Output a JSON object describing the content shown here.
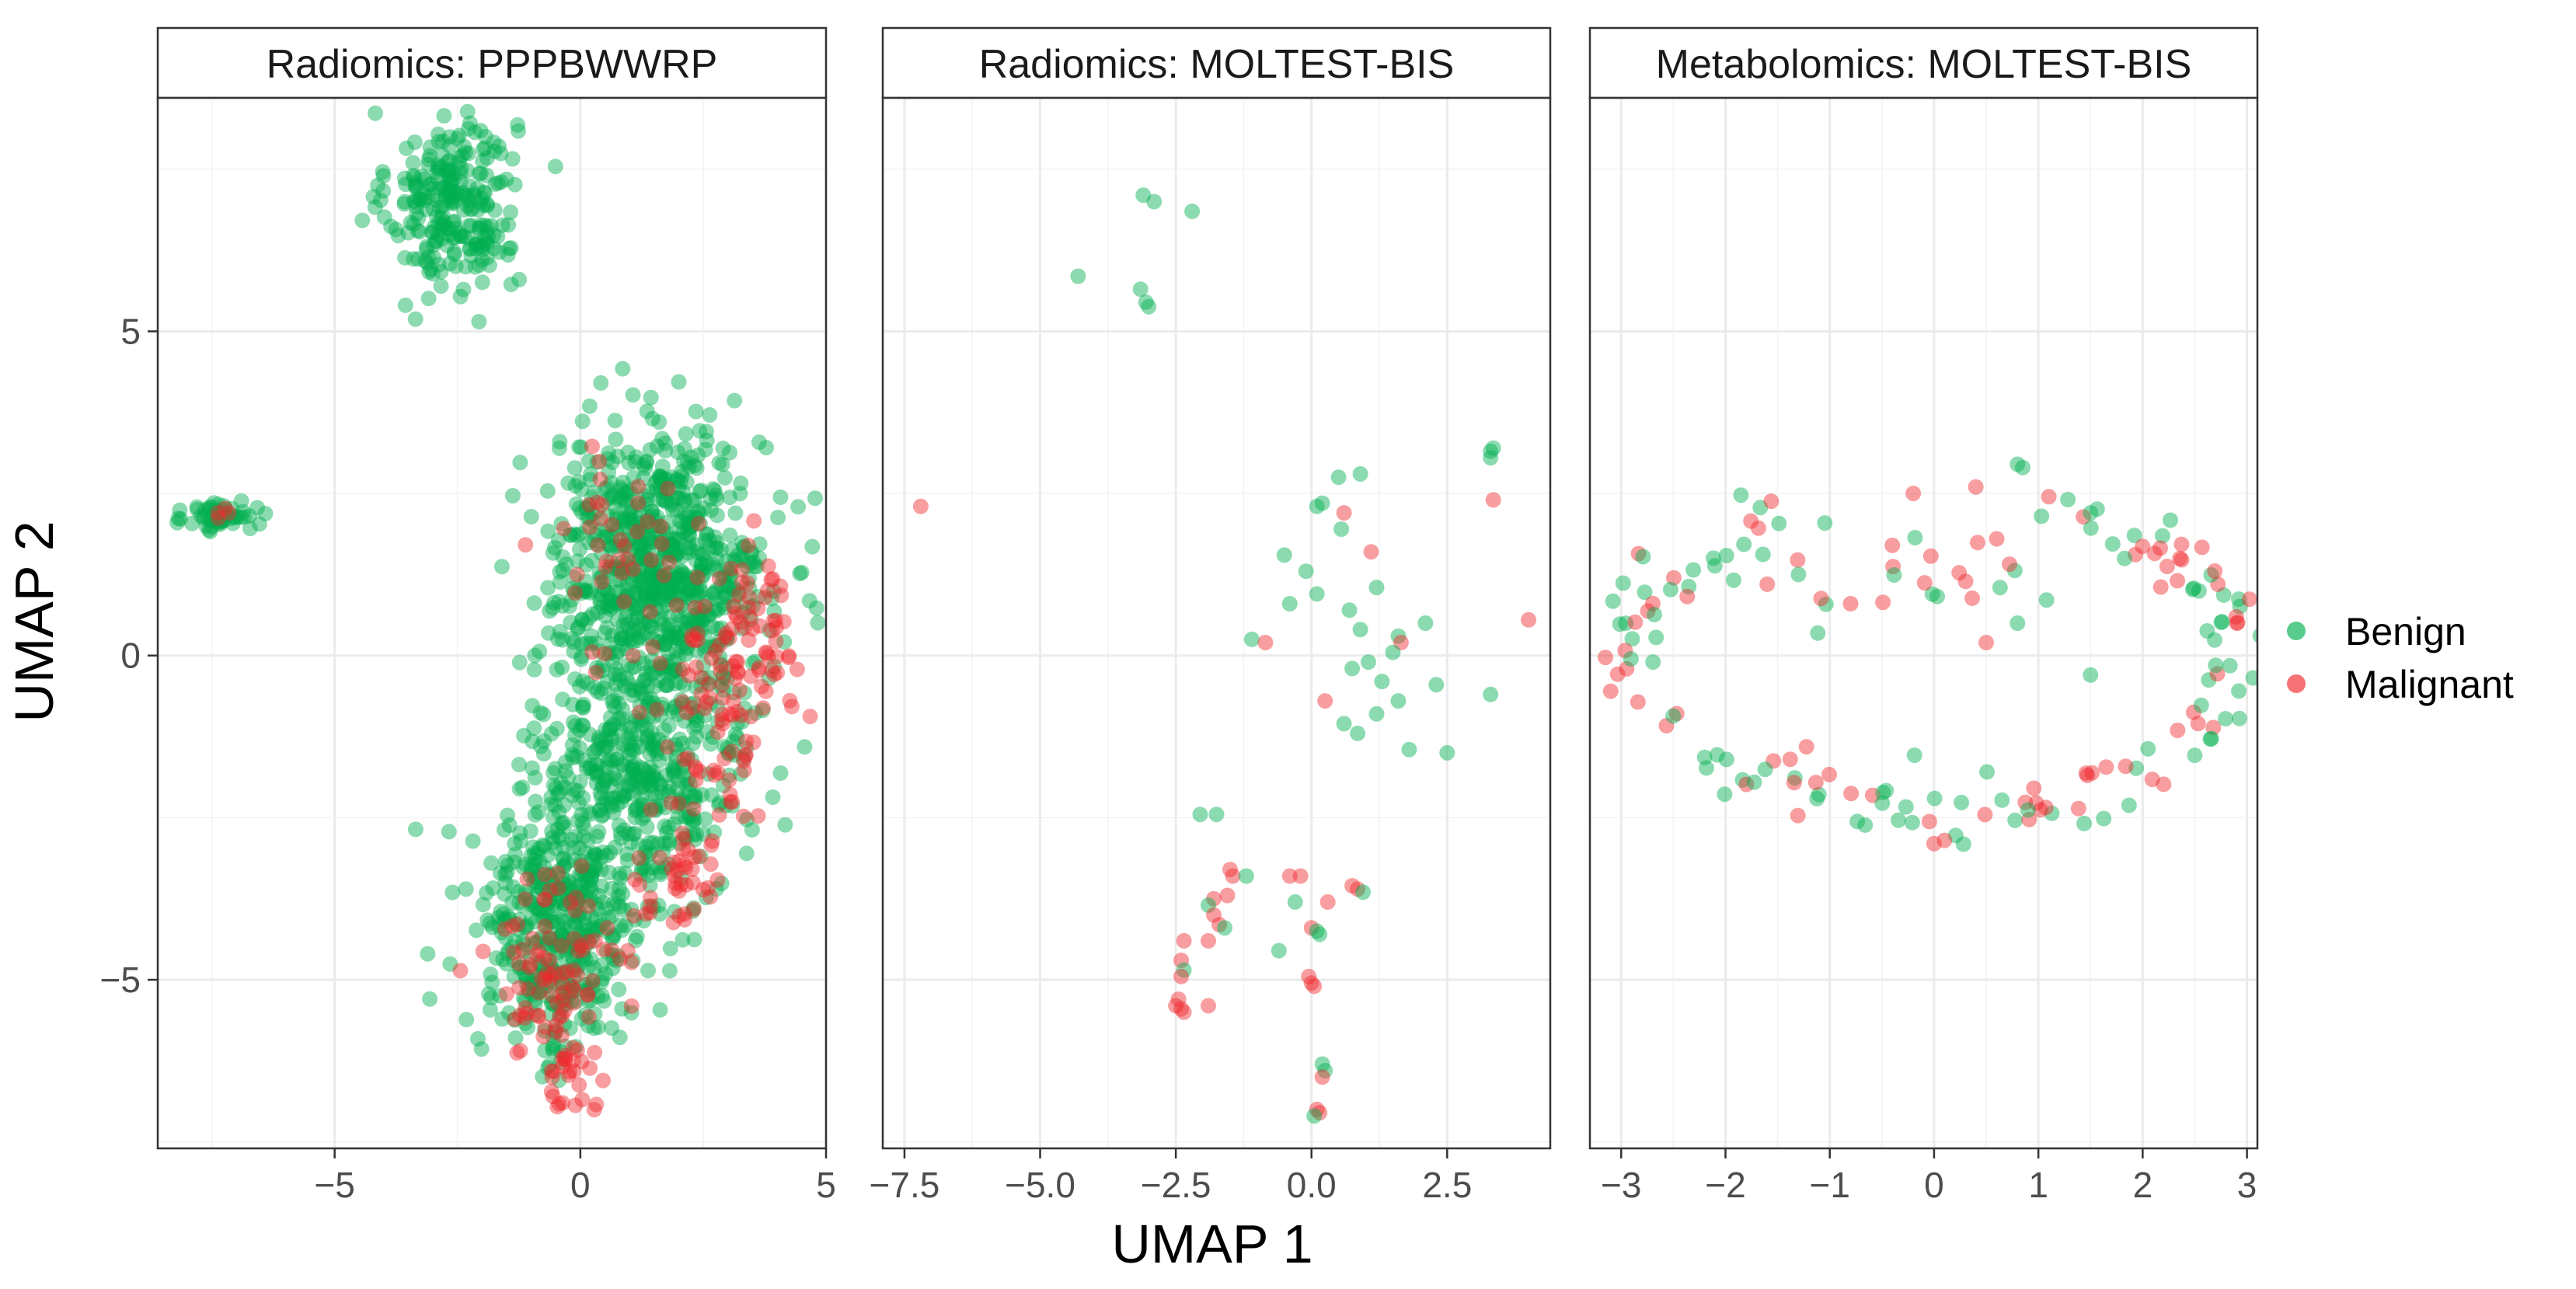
{
  "chart_data": {
    "type": "scatter",
    "facet_layout": "1 row x 3 columns, shared y axis",
    "xlabel": "UMAP 1",
    "ylabel": "UMAP 2",
    "ylim": [
      -7.6,
      8.6
    ],
    "y_ticks": [
      -5,
      0,
      5
    ],
    "y_tick_labels": [
      "−5",
      "0",
      "5"
    ],
    "legend": {
      "placement": "right",
      "entries": [
        {
          "label": "Benign",
          "color": "#00B050"
        },
        {
          "label": "Malignant",
          "color": "#F0282D"
        }
      ]
    },
    "point_alpha": 0.45,
    "panels": [
      {
        "title": "Radiomics: PPPBWWRP",
        "xlim": [
          -8.6,
          5.0
        ],
        "x_ticks": [
          -5,
          0,
          5
        ],
        "x_tick_labels": [
          "−5",
          "0",
          "5"
        ],
        "clusters": [
          {
            "label": "Benign",
            "n": 260,
            "cx": -2.6,
            "cy": 7.0,
            "sx": 0.65,
            "sy": 0.7
          },
          {
            "label": "Benign",
            "n": 60,
            "cx": -7.3,
            "cy": 2.15,
            "sx": 0.35,
            "sy": 0.12
          },
          {
            "label": "Malignant",
            "n": 4,
            "cx": -7.4,
            "cy": 2.2,
            "sx": 0.2,
            "sy": 0.08
          },
          {
            "label": "Benign",
            "n": 750,
            "cx": 1.6,
            "cy": 1.4,
            "sx": 1.1,
            "sy": 1.0
          },
          {
            "label": "Benign",
            "n": 480,
            "cx": 1.2,
            "cy": -1.8,
            "sx": 1.1,
            "sy": 1.0
          },
          {
            "label": "Benign",
            "n": 420,
            "cx": -0.5,
            "cy": -4.3,
            "sx": 0.8,
            "sy": 1.0
          },
          {
            "label": "Malignant",
            "n": 70,
            "cx": 2.7,
            "cy": -1.2,
            "sx": 0.6,
            "sy": 0.9
          },
          {
            "label": "Malignant",
            "n": 60,
            "cx": 3.6,
            "cy": 0.4,
            "sx": 0.5,
            "sy": 0.6
          },
          {
            "label": "Malignant",
            "n": 90,
            "cx": -0.6,
            "cy": -4.9,
            "sx": 0.7,
            "sy": 0.8
          },
          {
            "label": "Malignant",
            "n": 40,
            "cx": 2.1,
            "cy": -3.5,
            "sx": 0.4,
            "sy": 0.4
          },
          {
            "label": "Malignant",
            "n": 45,
            "cx": 1.2,
            "cy": 1.5,
            "sx": 1.0,
            "sy": 0.8
          },
          {
            "label": "Malignant",
            "n": 25,
            "cx": -0.1,
            "cy": -6.6,
            "sx": 0.3,
            "sy": 0.35
          }
        ]
      },
      {
        "title": "Radiomics: MOLTEST-BIS",
        "xlim": [
          -7.9,
          4.4
        ],
        "x_ticks": [
          -7.5,
          -5.0,
          -2.5,
          0.0,
          2.5
        ],
        "x_tick_labels": [
          "−7.5",
          "−5.0",
          "−2.5",
          "0.0",
          "2.5"
        ],
        "points": [
          {
            "x": -3.1,
            "y": 7.1,
            "label": "Benign"
          },
          {
            "x": -2.9,
            "y": 7.0,
            "label": "Benign"
          },
          {
            "x": -2.2,
            "y": 6.85,
            "label": "Benign"
          },
          {
            "x": -4.3,
            "y": 5.85,
            "label": "Benign"
          },
          {
            "x": -3.15,
            "y": 5.65,
            "label": "Benign"
          },
          {
            "x": -3.05,
            "y": 5.45,
            "label": "Benign"
          },
          {
            "x": -3.0,
            "y": 5.38,
            "label": "Benign"
          },
          {
            "x": -7.2,
            "y": 2.3,
            "label": "Malignant"
          },
          {
            "x": 0.5,
            "y": 2.75,
            "label": "Benign"
          },
          {
            "x": 0.9,
            "y": 2.8,
            "label": "Benign"
          },
          {
            "x": 0.2,
            "y": 2.35,
            "label": "Benign"
          },
          {
            "x": 0.1,
            "y": 2.3,
            "label": "Benign"
          },
          {
            "x": 0.6,
            "y": 2.2,
            "label": "Malignant"
          },
          {
            "x": 0.55,
            "y": 1.95,
            "label": "Benign"
          },
          {
            "x": 3.35,
            "y": 3.2,
            "label": "Benign"
          },
          {
            "x": 3.3,
            "y": 3.15,
            "label": "Benign"
          },
          {
            "x": 3.3,
            "y": 3.05,
            "label": "Benign"
          },
          {
            "x": 3.35,
            "y": 2.4,
            "label": "Malignant"
          },
          {
            "x": -0.5,
            "y": 1.55,
            "label": "Benign"
          },
          {
            "x": 1.1,
            "y": 1.6,
            "label": "Malignant"
          },
          {
            "x": -0.1,
            "y": 1.3,
            "label": "Benign"
          },
          {
            "x": 1.2,
            "y": 1.05,
            "label": "Benign"
          },
          {
            "x": 0.1,
            "y": 0.95,
            "label": "Benign"
          },
          {
            "x": -0.4,
            "y": 0.8,
            "label": "Benign"
          },
          {
            "x": 0.7,
            "y": 0.7,
            "label": "Benign"
          },
          {
            "x": 4.0,
            "y": 0.55,
            "label": "Malignant"
          },
          {
            "x": 2.1,
            "y": 0.5,
            "label": "Benign"
          },
          {
            "x": 0.9,
            "y": 0.4,
            "label": "Benign"
          },
          {
            "x": 1.6,
            "y": 0.3,
            "label": "Benign"
          },
          {
            "x": 1.65,
            "y": 0.2,
            "label": "Malignant"
          },
          {
            "x": -1.1,
            "y": 0.25,
            "label": "Benign"
          },
          {
            "x": -0.85,
            "y": 0.2,
            "label": "Malignant"
          },
          {
            "x": 1.5,
            "y": 0.05,
            "label": "Benign"
          },
          {
            "x": 0.75,
            "y": -0.2,
            "label": "Benign"
          },
          {
            "x": 1.05,
            "y": -0.1,
            "label": "Benign"
          },
          {
            "x": 1.3,
            "y": -0.4,
            "label": "Benign"
          },
          {
            "x": 2.3,
            "y": -0.45,
            "label": "Benign"
          },
          {
            "x": 3.3,
            "y": -0.6,
            "label": "Benign"
          },
          {
            "x": 1.6,
            "y": -0.7,
            "label": "Benign"
          },
          {
            "x": 0.25,
            "y": -0.7,
            "label": "Malignant"
          },
          {
            "x": 1.2,
            "y": -0.9,
            "label": "Benign"
          },
          {
            "x": 0.6,
            "y": -1.05,
            "label": "Benign"
          },
          {
            "x": 0.85,
            "y": -1.2,
            "label": "Benign"
          },
          {
            "x": 1.8,
            "y": -1.45,
            "label": "Benign"
          },
          {
            "x": 2.5,
            "y": -1.5,
            "label": "Benign"
          },
          {
            "x": -2.05,
            "y": -2.45,
            "label": "Benign"
          },
          {
            "x": -1.75,
            "y": -2.45,
            "label": "Benign"
          },
          {
            "x": -1.5,
            "y": -3.3,
            "label": "Malignant"
          },
          {
            "x": -1.45,
            "y": -3.4,
            "label": "Malignant"
          },
          {
            "x": -1.2,
            "y": -3.4,
            "label": "Benign"
          },
          {
            "x": -0.4,
            "y": -3.4,
            "label": "Malignant"
          },
          {
            "x": -0.2,
            "y": -3.4,
            "label": "Malignant"
          },
          {
            "x": 0.75,
            "y": -3.55,
            "label": "Malignant"
          },
          {
            "x": 0.85,
            "y": -3.6,
            "label": "Malignant"
          },
          {
            "x": 0.95,
            "y": -3.65,
            "label": "Benign"
          },
          {
            "x": -1.55,
            "y": -3.7,
            "label": "Malignant"
          },
          {
            "x": -1.8,
            "y": -3.75,
            "label": "Malignant"
          },
          {
            "x": -1.9,
            "y": -3.85,
            "label": "Benign"
          },
          {
            "x": -1.8,
            "y": -4.0,
            "label": "Malignant"
          },
          {
            "x": -1.7,
            "y": -4.15,
            "label": "Malignant"
          },
          {
            "x": -1.6,
            "y": -4.2,
            "label": "Benign"
          },
          {
            "x": -0.3,
            "y": -3.8,
            "label": "Benign"
          },
          {
            "x": 0.3,
            "y": -3.8,
            "label": "Malignant"
          },
          {
            "x": 0.0,
            "y": -4.2,
            "label": "Malignant"
          },
          {
            "x": 0.1,
            "y": -4.25,
            "label": "Benign"
          },
          {
            "x": 0.15,
            "y": -4.3,
            "label": "Benign"
          },
          {
            "x": -2.35,
            "y": -4.4,
            "label": "Malignant"
          },
          {
            "x": -1.9,
            "y": -4.4,
            "label": "Malignant"
          },
          {
            "x": -0.6,
            "y": -4.55,
            "label": "Benign"
          },
          {
            "x": -2.4,
            "y": -4.7,
            "label": "Malignant"
          },
          {
            "x": -2.35,
            "y": -4.85,
            "label": "Benign"
          },
          {
            "x": -2.4,
            "y": -4.95,
            "label": "Malignant"
          },
          {
            "x": -0.05,
            "y": -4.95,
            "label": "Malignant"
          },
          {
            "x": 0.0,
            "y": -5.05,
            "label": "Malignant"
          },
          {
            "x": 0.05,
            "y": -5.1,
            "label": "Malignant"
          },
          {
            "x": -2.45,
            "y": -5.3,
            "label": "Malignant"
          },
          {
            "x": -2.5,
            "y": -5.4,
            "label": "Malignant"
          },
          {
            "x": -2.4,
            "y": -5.45,
            "label": "Malignant"
          },
          {
            "x": -2.35,
            "y": -5.5,
            "label": "Malignant"
          },
          {
            "x": -1.9,
            "y": -5.4,
            "label": "Malignant"
          },
          {
            "x": 0.2,
            "y": -6.3,
            "label": "Benign"
          },
          {
            "x": 0.25,
            "y": -6.4,
            "label": "Benign"
          },
          {
            "x": 0.2,
            "y": -6.5,
            "label": "Malignant"
          },
          {
            "x": 0.1,
            "y": -7.0,
            "label": "Malignant"
          },
          {
            "x": 0.15,
            "y": -7.05,
            "label": "Malignant"
          },
          {
            "x": 0.05,
            "y": -7.1,
            "label": "Benign"
          }
        ]
      },
      {
        "title": "Metabolomics: MOLTEST-BIS",
        "xlim": [
          -3.3,
          3.1
        ],
        "x_ticks": [
          -3,
          -2,
          -1,
          0,
          1,
          2,
          3
        ],
        "x_tick_labels": [
          "−3",
          "−2",
          "−1",
          "0",
          "1",
          "2",
          "3"
        ],
        "ring_points": {
          "n": 175,
          "cx": 0.0,
          "cy": 0.0,
          "rx": 2.9,
          "ry": 2.8,
          "upper_dip": 1.1,
          "noise_x": 0.18,
          "noise_y": 0.3,
          "malignant_share": 0.5
        },
        "extra_points": [
          {
            "x": 0.8,
            "y": 2.95,
            "label": "Benign"
          },
          {
            "x": 0.85,
            "y": 2.9,
            "label": "Benign"
          },
          {
            "x": 0.4,
            "y": 2.6,
            "label": "Malignant"
          },
          {
            "x": -0.2,
            "y": 2.5,
            "label": "Malignant"
          },
          {
            "x": 1.1,
            "y": 2.45,
            "label": "Malignant"
          },
          {
            "x": 1.5,
            "y": 2.2,
            "label": "Benign"
          },
          {
            "x": -0.4,
            "y": 1.7,
            "label": "Malignant"
          },
          {
            "x": 0.6,
            "y": 1.8,
            "label": "Malignant"
          },
          {
            "x": -1.3,
            "y": 1.25,
            "label": "Benign"
          },
          {
            "x": -1.6,
            "y": 1.1,
            "label": "Malignant"
          },
          {
            "x": -0.8,
            "y": 0.8,
            "label": "Malignant"
          },
          {
            "x": 0.8,
            "y": 0.5,
            "label": "Benign"
          },
          {
            "x": 0.5,
            "y": 0.2,
            "label": "Malignant"
          },
          {
            "x": 1.5,
            "y": -0.3,
            "label": "Benign"
          },
          {
            "x": -3.1,
            "y": -0.55,
            "label": "Malignant"
          },
          {
            "x": 2.7,
            "y": -0.15,
            "label": "Benign"
          },
          {
            "x": 0.1,
            "y": -2.85,
            "label": "Malignant"
          },
          {
            "x": 0.0,
            "y": -2.9,
            "label": "Malignant"
          }
        ]
      }
    ]
  }
}
